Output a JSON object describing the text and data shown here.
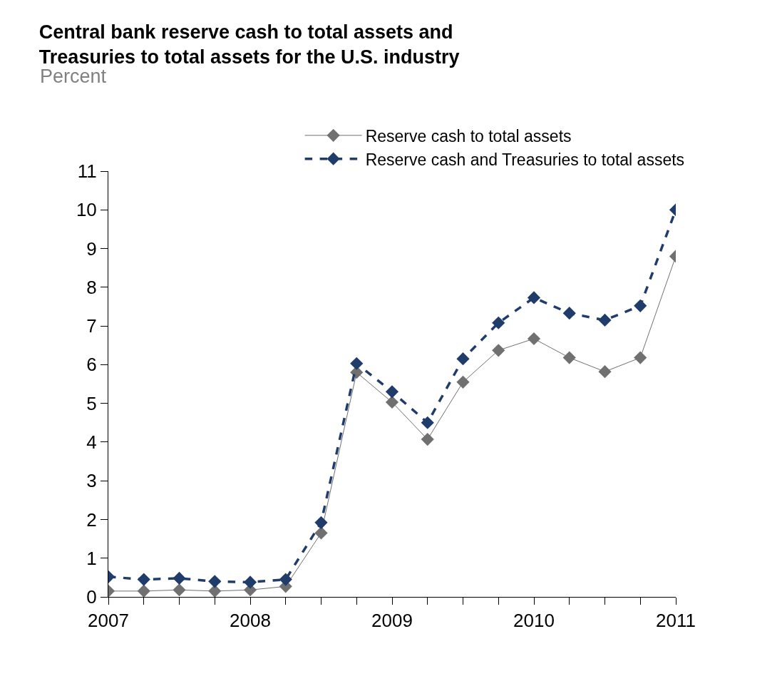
{
  "chart_data": {
    "type": "line",
    "title": "Central bank reserve cash to total assets and Treasuries to total assets for the U.S. industry",
    "subtitle": "Percent",
    "x": [
      2007,
      2007.25,
      2007.5,
      2007.75,
      2008,
      2008.25,
      2008.5,
      2008.75,
      2009,
      2009.25,
      2009.5,
      2009.75,
      2010,
      2010.25,
      2010.5,
      2010.75,
      2011
    ],
    "series": [
      {
        "name": "Reserve cash to total assets",
        "color": "#707070",
        "line_style": "solid",
        "values": [
          0.15,
          0.15,
          0.18,
          0.15,
          0.18,
          0.27,
          1.65,
          5.8,
          5.03,
          4.07,
          5.55,
          6.37,
          6.67,
          6.18,
          5.82,
          6.18,
          8.8
        ]
      },
      {
        "name": "Reserve cash and Treasuries to total assets",
        "color": "#1f3c6b",
        "line_style": "dashed",
        "values": [
          0.52,
          0.45,
          0.48,
          0.4,
          0.38,
          0.45,
          1.92,
          6.03,
          5.3,
          4.5,
          6.15,
          7.08,
          7.73,
          7.33,
          7.15,
          7.52,
          10.0
        ]
      }
    ],
    "xlim": [
      2007,
      2011
    ],
    "xticks": [
      2007,
      {
        "value": 2007.25,
        "label": null
      },
      {
        "value": 2007.5,
        "label": null
      },
      {
        "value": 2007.75,
        "label": null
      },
      2008,
      {
        "value": 2008.25,
        "label": null
      },
      {
        "value": 2008.5,
        "label": null
      },
      {
        "value": 2008.75,
        "label": null
      },
      2009,
      {
        "value": 2009.25,
        "label": null
      },
      {
        "value": 2009.5,
        "label": null
      },
      {
        "value": 2009.75,
        "label": null
      },
      2010,
      {
        "value": 2010.25,
        "label": null
      },
      {
        "value": 2010.5,
        "label": null
      },
      {
        "value": 2010.75,
        "label": null
      },
      2011
    ],
    "ylim": [
      0,
      11
    ],
    "yticks": [
      0,
      1,
      2,
      3,
      4,
      5,
      6,
      7,
      8,
      9,
      10,
      11
    ],
    "grid": false,
    "legend": "top right",
    "marker": "diamond"
  }
}
